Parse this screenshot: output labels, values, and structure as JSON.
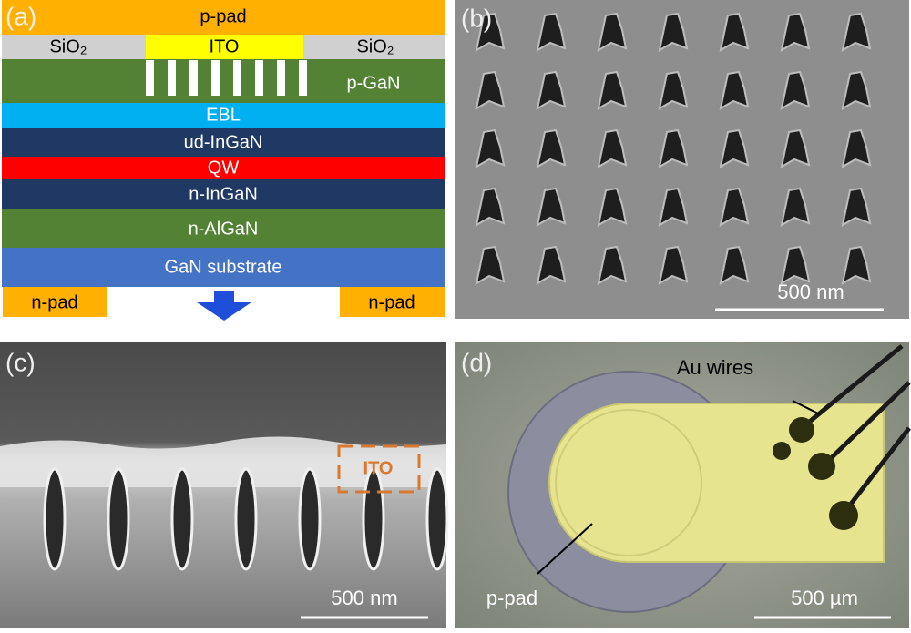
{
  "panel_a": {
    "label": "(a)",
    "p_pad": "p-pad",
    "sio2_left": "SiO₂",
    "ito": "ITO",
    "sio2_right": "SiO₂",
    "p_gan": "p-GaN",
    "ebl": "EBL",
    "ud_ingan": "ud-InGaN",
    "qw": "QW",
    "n_ingan": "n-InGaN",
    "n_algan": "n-AlGaN",
    "substrate": "GaN substrate",
    "n_pad_left": "n-pad",
    "n_pad_right": "n-pad"
  },
  "panel_b": {
    "label": "(b)",
    "scale_bar": "500 nm"
  },
  "panel_c": {
    "label": "(c)",
    "annotation": "ITO",
    "scale_bar": "500 nm"
  },
  "panel_d": {
    "label": "(d)",
    "wires": "Au wires",
    "pad": "p-pad",
    "scale_bar": "500 µm"
  }
}
